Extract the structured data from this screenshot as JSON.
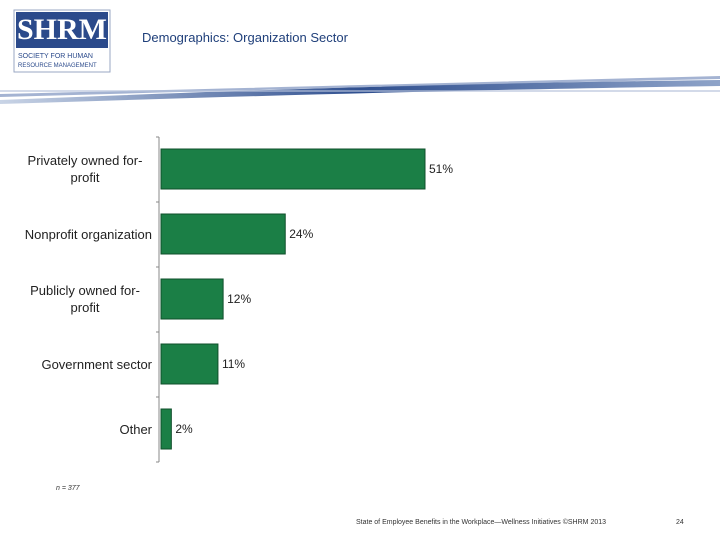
{
  "logo": {
    "name": "SHRM",
    "tagline_1": "SOCIETY FOR HUMAN",
    "tagline_2": "RESOURCE MANAGEMENT"
  },
  "chart_data": {
    "type": "barh",
    "title": "Demographics: Organization Sector",
    "categories": [
      "Privately owned for-profit",
      "Nonprofit organization",
      "Publicly owned for-profit",
      "Government sector",
      "Other"
    ],
    "values": [
      51,
      24,
      12,
      11,
      2
    ],
    "value_labels": [
      "51%",
      "24%",
      "12%",
      "11%",
      "2%"
    ],
    "color": "#1b7f46",
    "note": "n = 377"
  },
  "footer": {
    "source": "State of Employee Benefits in the Workplace—Wellness Initiatives ©SHRM 2013",
    "page": "24"
  }
}
